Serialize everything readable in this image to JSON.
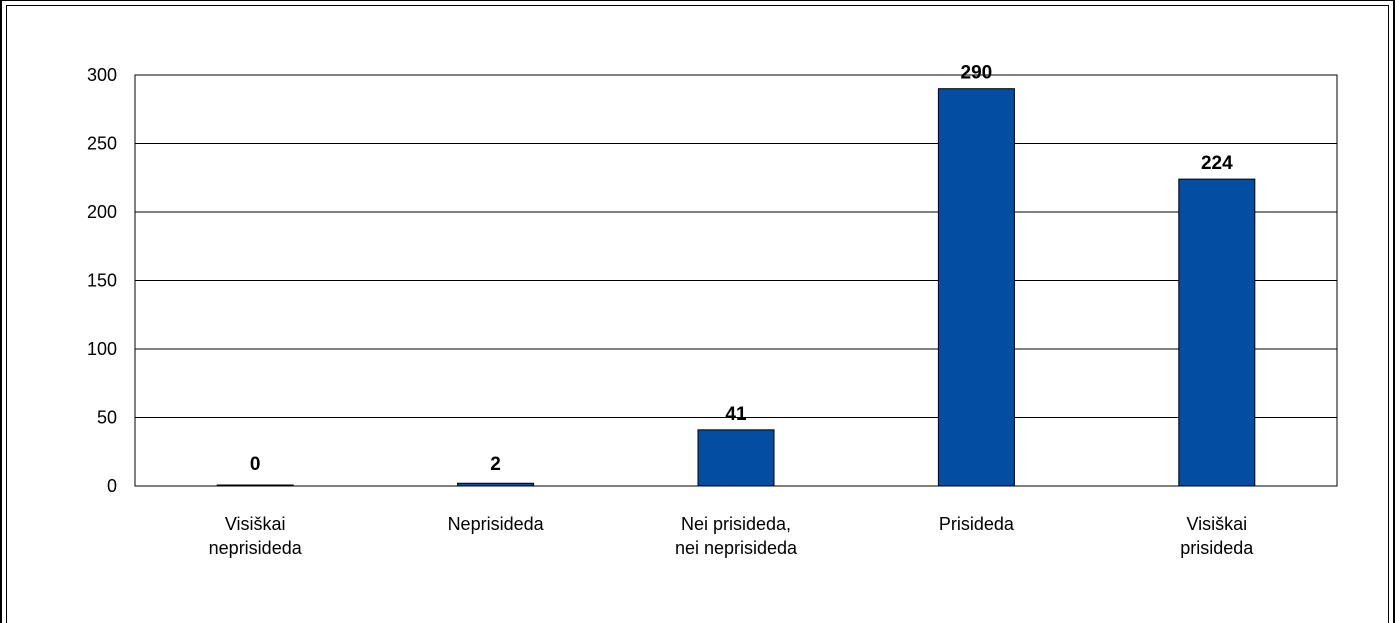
{
  "chart_data": {
    "type": "bar",
    "categories": [
      [
        "Visiškai",
        "neprisideda"
      ],
      [
        "Neprisideda"
      ],
      [
        "Nei prisideda,",
        "nei neprisideda"
      ],
      [
        "Prisideda"
      ],
      [
        "Visiškai",
        "prisideda"
      ]
    ],
    "values": [
      0,
      2,
      41,
      290,
      224
    ],
    "data_labels": [
      "0",
      "2",
      "41",
      "290",
      "224"
    ],
    "yticks": [
      0,
      50,
      100,
      150,
      200,
      250,
      300
    ],
    "ylim": [
      0,
      300
    ],
    "bar_color": "#034ea2",
    "grid": true,
    "title": "",
    "xlabel": "",
    "ylabel": ""
  }
}
